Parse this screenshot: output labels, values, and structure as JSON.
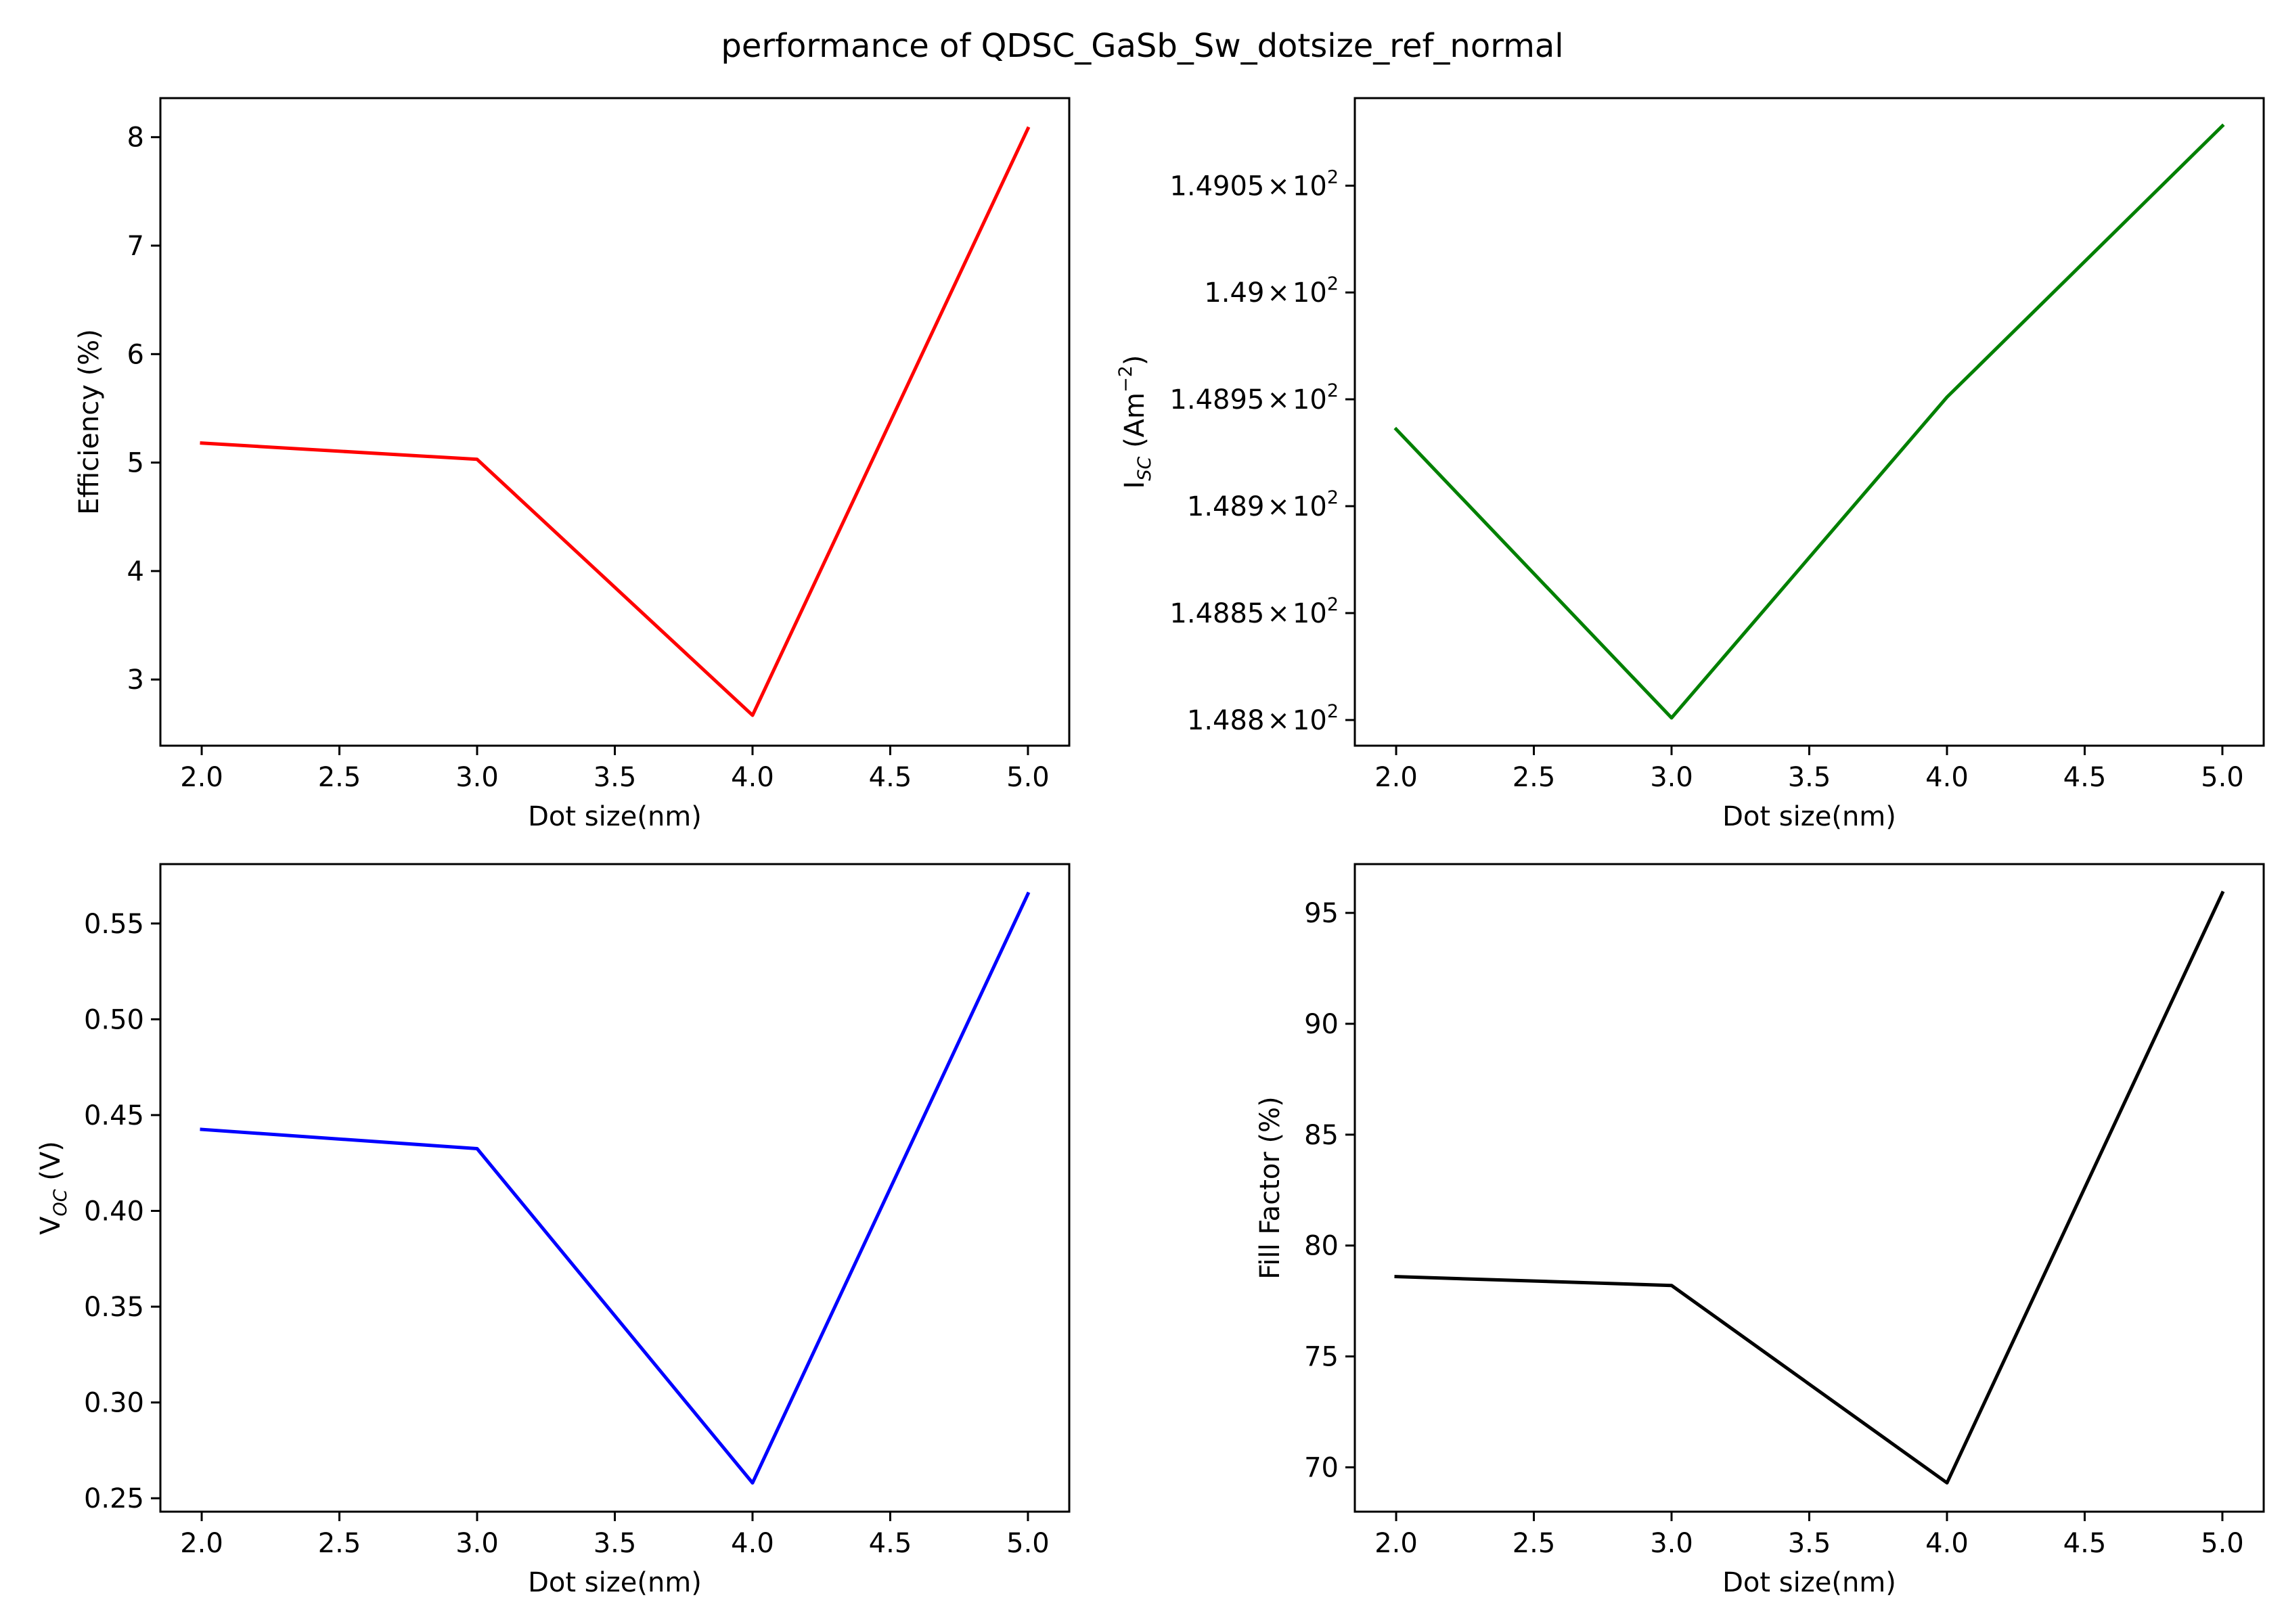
{
  "figure_title": "performance of QDSC_GaSb_Sw_dotsize_ref_normal",
  "chart_data": [
    {
      "type": "line",
      "x": [
        2.0,
        3.0,
        4.0,
        5.0
      ],
      "series": [
        {
          "values": [
            5.18,
            5.03,
            2.67,
            8.08
          ],
          "color": "#ff0000"
        }
      ],
      "xlabel": "Dot size(nm)",
      "ylabel": "Efficiency (%)",
      "xlim": [
        1.85,
        5.15
      ],
      "ylim": [
        2.39,
        8.36
      ],
      "xticks": [
        2.0,
        2.5,
        3.0,
        3.5,
        4.0,
        4.5,
        5.0
      ],
      "xtick_labels": [
        "2.0",
        "2.5",
        "3.0",
        "3.5",
        "4.0",
        "4.5",
        "5.0"
      ],
      "yticks": [
        3,
        4,
        5,
        6,
        7,
        8
      ],
      "ytick_labels": [
        "3",
        "4",
        "5",
        "6",
        "7",
        "8"
      ],
      "grid": false
    },
    {
      "type": "line",
      "x": [
        2.0,
        3.0,
        4.0,
        5.0
      ],
      "series": [
        {
          "values": [
            148.936,
            148.801,
            148.951,
            149.078
          ],
          "color": "#008000"
        }
      ],
      "xlabel": "Dot size(nm)",
      "ylabel": {
        "main": "I",
        "sub": "SC",
        "rest": " (Am",
        "sup": "−2",
        "end": ")"
      },
      "xlim": [
        1.85,
        5.15
      ],
      "ylim": [
        148.788,
        149.091
      ],
      "yscale": "log",
      "xticks": [
        2.0,
        2.5,
        3.0,
        3.5,
        4.0,
        4.5,
        5.0
      ],
      "xtick_labels": [
        "2.0",
        "2.5",
        "3.0",
        "3.5",
        "4.0",
        "4.5",
        "5.0"
      ],
      "yticks": [
        148.8,
        148.85,
        148.9,
        148.95,
        149.0,
        149.05
      ],
      "ytick_labels": [
        {
          "mantissa": "1.488",
          "times": "×",
          "base": "10",
          "exp": "2"
        },
        {
          "mantissa": "1.4885",
          "times": "×",
          "base": "10",
          "exp": "2"
        },
        {
          "mantissa": "1.489",
          "times": "×",
          "base": "10",
          "exp": "2"
        },
        {
          "mantissa": "1.4895",
          "times": "×",
          "base": "10",
          "exp": "2"
        },
        {
          "mantissa": "1.49",
          "times": "×",
          "base": "10",
          "exp": "2"
        },
        {
          "mantissa": "1.4905",
          "times": "×",
          "base": "10",
          "exp": "2"
        }
      ],
      "grid": false
    },
    {
      "type": "line",
      "x": [
        2.0,
        3.0,
        4.0,
        5.0
      ],
      "series": [
        {
          "values": [
            0.4425,
            0.4325,
            0.258,
            0.5655
          ],
          "color": "#0000ff"
        }
      ],
      "xlabel": "Dot size(nm)",
      "ylabel": {
        "main": "V",
        "sub": "OC",
        "rest": " (V)",
        "sup": "",
        "end": ""
      },
      "xlim": [
        1.85,
        5.15
      ],
      "ylim": [
        0.243,
        0.581
      ],
      "xticks": [
        2.0,
        2.5,
        3.0,
        3.5,
        4.0,
        4.5,
        5.0
      ],
      "xtick_labels": [
        "2.0",
        "2.5",
        "3.0",
        "3.5",
        "4.0",
        "4.5",
        "5.0"
      ],
      "yticks": [
        0.25,
        0.3,
        0.35,
        0.4,
        0.45,
        0.5,
        0.55
      ],
      "ytick_labels": [
        "0.25",
        "0.30",
        "0.35",
        "0.40",
        "0.45",
        "0.50",
        "0.55"
      ],
      "grid": false
    },
    {
      "type": "line",
      "x": [
        2.0,
        3.0,
        4.0,
        5.0
      ],
      "series": [
        {
          "values": [
            78.6,
            78.2,
            69.3,
            95.9
          ],
          "color": "#000000"
        }
      ],
      "xlabel": "Dot size(nm)",
      "ylabel": "Fill Factor (%)",
      "xlim": [
        1.85,
        5.15
      ],
      "ylim": [
        68.0,
        97.2
      ],
      "xticks": [
        2.0,
        2.5,
        3.0,
        3.5,
        4.0,
        4.5,
        5.0
      ],
      "xtick_labels": [
        "2.0",
        "2.5",
        "3.0",
        "3.5",
        "4.0",
        "4.5",
        "5.0"
      ],
      "yticks": [
        70,
        75,
        80,
        85,
        90,
        95
      ],
      "ytick_labels": [
        "70",
        "75",
        "80",
        "85",
        "90",
        "95"
      ],
      "grid": false
    }
  ]
}
